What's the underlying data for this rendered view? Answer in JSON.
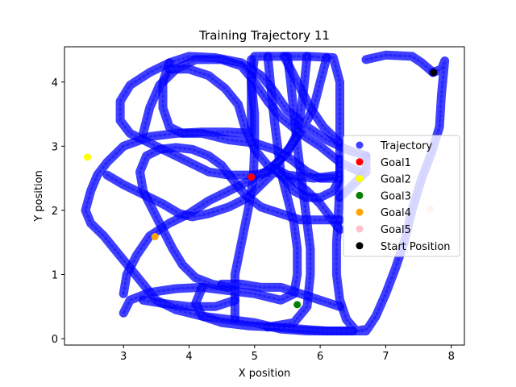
{
  "chart_data": {
    "type": "scatter",
    "title": "Training Trajectory 11",
    "xlabel": "X position",
    "ylabel": "Y position",
    "xlim": [
      2.1,
      8.2
    ],
    "ylim": [
      -0.1,
      4.55
    ],
    "xticks": [
      3,
      4,
      5,
      6,
      7,
      8
    ],
    "yticks": [
      0,
      1,
      2,
      3,
      4
    ],
    "grid": false,
    "legend_position": "center-right",
    "trajectory": {
      "name": "Trajectory",
      "color": "#0000ff",
      "paths": [
        [
          [
            7.72,
            4.15
          ],
          [
            7.85,
            4.2
          ],
          [
            7.9,
            4.33
          ],
          [
            7.85,
            3.8
          ],
          [
            7.82,
            3.3
          ],
          [
            7.7,
            2.9
          ],
          [
            7.55,
            2.5
          ],
          [
            7.4,
            2.0
          ],
          [
            7.28,
            1.5
          ],
          [
            7.15,
            1.1
          ],
          [
            7.0,
            0.7
          ],
          [
            6.85,
            0.35
          ],
          [
            6.72,
            0.15
          ],
          [
            6.55,
            0.12
          ],
          [
            6.4,
            0.3
          ],
          [
            6.3,
            0.6
          ],
          [
            6.25,
            1.0
          ],
          [
            6.25,
            1.5
          ],
          [
            6.28,
            2.0
          ],
          [
            6.3,
            2.5
          ],
          [
            6.3,
            3.0
          ],
          [
            6.3,
            3.5
          ],
          [
            6.3,
            4.0
          ],
          [
            6.2,
            4.38
          ],
          [
            5.8,
            4.4
          ],
          [
            5.4,
            4.4
          ],
          [
            5.0,
            4.4
          ],
          [
            4.95,
            4.0
          ],
          [
            4.95,
            3.6
          ],
          [
            4.95,
            3.2
          ],
          [
            4.6,
            3.22
          ],
          [
            4.2,
            3.22
          ],
          [
            3.8,
            3.2
          ],
          [
            3.4,
            3.15
          ],
          [
            3.0,
            3.0
          ],
          [
            2.75,
            2.75
          ],
          [
            2.6,
            2.55
          ],
          [
            2.5,
            2.3
          ],
          [
            2.42,
            2.0
          ],
          [
            2.5,
            1.8
          ],
          [
            2.7,
            1.6
          ],
          [
            2.9,
            1.35
          ],
          [
            3.1,
            1.1
          ],
          [
            3.3,
            0.85
          ],
          [
            3.5,
            0.6
          ],
          [
            3.8,
            0.45
          ],
          [
            4.2,
            0.35
          ],
          [
            4.6,
            0.3
          ],
          [
            5.0,
            0.25
          ],
          [
            5.4,
            0.15
          ],
          [
            5.8,
            0.12
          ],
          [
            6.2,
            0.12
          ],
          [
            6.7,
            0.12
          ]
        ],
        [
          [
            6.7,
            4.35
          ],
          [
            7.0,
            4.42
          ],
          [
            7.4,
            4.4
          ],
          [
            7.55,
            4.3
          ],
          [
            7.72,
            4.15
          ]
        ],
        [
          [
            4.95,
            4.35
          ],
          [
            4.95,
            4.0
          ],
          [
            5.0,
            3.5
          ],
          [
            5.0,
            3.0
          ],
          [
            4.98,
            2.5
          ],
          [
            4.9,
            2.0
          ],
          [
            4.8,
            1.5
          ],
          [
            4.7,
            1.0
          ],
          [
            4.7,
            0.6
          ],
          [
            4.7,
            0.3
          ]
        ],
        [
          [
            5.2,
            4.4
          ],
          [
            5.25,
            3.9
          ],
          [
            5.3,
            3.4
          ],
          [
            5.35,
            3.0
          ],
          [
            5.4,
            2.6
          ],
          [
            5.5,
            2.2
          ],
          [
            5.6,
            1.8
          ],
          [
            5.65,
            1.4
          ],
          [
            5.65,
            1.0
          ],
          [
            5.6,
            0.7
          ],
          [
            5.4,
            0.6
          ],
          [
            5.0,
            0.7
          ],
          [
            4.6,
            0.75
          ],
          [
            4.2,
            0.8
          ],
          [
            3.8,
            0.78
          ],
          [
            3.4,
            0.72
          ],
          [
            3.1,
            0.6
          ],
          [
            3.0,
            0.4
          ]
        ],
        [
          [
            5.5,
            4.4
          ],
          [
            5.55,
            4.0
          ],
          [
            5.6,
            3.5
          ],
          [
            5.65,
            3.0
          ],
          [
            5.7,
            2.6
          ],
          [
            5.75,
            2.2
          ],
          [
            5.8,
            1.8
          ],
          [
            5.85,
            1.4
          ],
          [
            5.85,
            1.0
          ],
          [
            5.8,
            0.5
          ],
          [
            5.6,
            0.25
          ],
          [
            5.2,
            0.18
          ]
        ],
        [
          [
            5.8,
            4.4
          ],
          [
            5.75,
            3.9
          ],
          [
            5.7,
            3.5
          ],
          [
            5.65,
            3.2
          ],
          [
            5.5,
            2.9
          ],
          [
            5.3,
            2.7
          ],
          [
            5.1,
            2.55
          ],
          [
            4.9,
            2.45
          ],
          [
            4.6,
            2.3
          ],
          [
            4.3,
            2.15
          ],
          [
            4.0,
            1.95
          ],
          [
            3.7,
            1.8
          ],
          [
            3.4,
            1.6
          ],
          [
            3.2,
            1.3
          ],
          [
            3.05,
            1.0
          ],
          [
            3.0,
            0.7
          ]
        ],
        [
          [
            6.1,
            4.38
          ],
          [
            6.0,
            4.0
          ],
          [
            5.9,
            3.6
          ],
          [
            5.75,
            3.3
          ],
          [
            5.55,
            3.0
          ],
          [
            5.4,
            2.8
          ],
          [
            5.2,
            2.6
          ],
          [
            5.0,
            2.55
          ],
          [
            4.6,
            2.55
          ],
          [
            4.3,
            2.6
          ],
          [
            4.0,
            2.75
          ],
          [
            3.7,
            2.9
          ],
          [
            3.4,
            3.05
          ],
          [
            3.1,
            3.2
          ],
          [
            2.95,
            3.4
          ],
          [
            2.95,
            3.7
          ],
          [
            3.1,
            3.95
          ],
          [
            3.4,
            4.15
          ],
          [
            3.7,
            4.3
          ],
          [
            4.0,
            4.4
          ],
          [
            4.4,
            4.38
          ],
          [
            4.8,
            4.3
          ],
          [
            5.1,
            4.1
          ],
          [
            5.3,
            3.85
          ],
          [
            5.5,
            3.55
          ],
          [
            5.8,
            3.3
          ],
          [
            6.1,
            3.1
          ],
          [
            6.4,
            2.95
          ],
          [
            6.7,
            2.85
          ]
        ],
        [
          [
            3.3,
            3.2
          ],
          [
            3.4,
            3.6
          ],
          [
            3.55,
            3.95
          ],
          [
            3.8,
            4.2
          ],
          [
            4.1,
            4.35
          ],
          [
            4.5,
            4.35
          ],
          [
            4.8,
            4.25
          ],
          [
            5.0,
            4.0
          ],
          [
            5.2,
            3.7
          ],
          [
            5.4,
            3.45
          ],
          [
            5.7,
            3.2
          ],
          [
            6.0,
            3.0
          ],
          [
            6.3,
            2.75
          ],
          [
            6.6,
            2.6
          ]
        ],
        [
          [
            3.7,
            4.3
          ],
          [
            3.6,
            4.0
          ],
          [
            3.6,
            3.6
          ],
          [
            3.7,
            3.3
          ],
          [
            3.9,
            3.2
          ],
          [
            4.2,
            3.2
          ],
          [
            4.6,
            3.1
          ],
          [
            5.0,
            3.05
          ],
          [
            5.3,
            2.95
          ],
          [
            5.55,
            2.8
          ],
          [
            5.8,
            2.6
          ],
          [
            6.0,
            2.5
          ],
          [
            6.3,
            2.5
          ]
        ],
        [
          [
            2.75,
            2.55
          ],
          [
            3.0,
            2.4
          ],
          [
            3.3,
            2.25
          ],
          [
            3.6,
            2.1
          ],
          [
            3.85,
            1.95
          ],
          [
            4.05,
            1.9
          ],
          [
            4.3,
            1.95
          ],
          [
            4.6,
            2.05
          ],
          [
            4.9,
            2.2
          ],
          [
            5.1,
            2.4
          ],
          [
            5.3,
            2.6
          ],
          [
            5.55,
            2.5
          ],
          [
            5.8,
            2.3
          ],
          [
            6.0,
            2.1
          ],
          [
            6.15,
            1.9
          ],
          [
            6.3,
            1.7
          ]
        ],
        [
          [
            6.3,
            1.85
          ],
          [
            6.0,
            1.85
          ],
          [
            5.7,
            1.85
          ],
          [
            5.4,
            1.95
          ],
          [
            5.1,
            2.05
          ],
          [
            4.85,
            2.25
          ],
          [
            4.65,
            2.5
          ],
          [
            4.5,
            2.7
          ],
          [
            4.3,
            2.85
          ],
          [
            4.05,
            2.95
          ],
          [
            3.8,
            2.98
          ],
          [
            3.55,
            2.95
          ],
          [
            3.35,
            2.85
          ],
          [
            3.25,
            2.6
          ],
          [
            3.3,
            2.3
          ],
          [
            3.45,
            2.0
          ],
          [
            3.6,
            1.7
          ],
          [
            3.75,
            1.4
          ],
          [
            3.9,
            1.15
          ],
          [
            4.1,
            0.95
          ],
          [
            4.35,
            0.85
          ],
          [
            4.6,
            0.8
          ]
        ],
        [
          [
            6.3,
            2.55
          ],
          [
            5.9,
            2.5
          ],
          [
            5.5,
            2.55
          ],
          [
            5.2,
            2.7
          ],
          [
            5.0,
            2.95
          ],
          [
            4.85,
            3.3
          ],
          [
            4.75,
            3.65
          ],
          [
            4.55,
            3.9
          ],
          [
            4.3,
            4.1
          ],
          [
            4.0,
            4.2
          ],
          [
            3.7,
            4.2
          ]
        ],
        [
          [
            6.3,
            3.05
          ],
          [
            6.05,
            3.3
          ],
          [
            5.85,
            3.6
          ],
          [
            5.7,
            3.9
          ],
          [
            5.55,
            4.2
          ],
          [
            5.45,
            4.4
          ]
        ],
        [
          [
            6.3,
            2.2
          ],
          [
            6.5,
            2.4
          ],
          [
            6.7,
            2.6
          ],
          [
            6.7,
            2.85
          ]
        ],
        [
          [
            4.7,
            0.6
          ],
          [
            4.4,
            0.5
          ],
          [
            4.0,
            0.5
          ],
          [
            3.6,
            0.55
          ],
          [
            3.3,
            0.6
          ]
        ],
        [
          [
            4.2,
            0.8
          ],
          [
            4.1,
            0.55
          ],
          [
            4.2,
            0.35
          ],
          [
            4.5,
            0.25
          ],
          [
            4.9,
            0.2
          ],
          [
            5.3,
            0.18
          ],
          [
            5.7,
            0.15
          ],
          [
            6.1,
            0.12
          ],
          [
            6.5,
            0.12
          ]
        ],
        [
          [
            6.3,
            0.5
          ],
          [
            6.0,
            0.6
          ],
          [
            5.7,
            0.7
          ],
          [
            5.4,
            0.8
          ],
          [
            5.1,
            0.8
          ],
          [
            4.8,
            0.85
          ],
          [
            4.5,
            0.85
          ]
        ],
        [
          [
            6.3,
            2.8
          ],
          [
            6.3,
            2.5
          ],
          [
            6.2,
            2.3
          ],
          [
            6.0,
            2.2
          ],
          [
            5.8,
            2.2
          ],
          [
            5.6,
            2.3
          ],
          [
            5.5,
            2.45
          ],
          [
            5.4,
            2.55
          ],
          [
            5.3,
            2.65
          ]
        ]
      ]
    },
    "series": [
      {
        "name": "Goal1",
        "color": "#ff0000",
        "x": 4.95,
        "y": 2.52
      },
      {
        "name": "Goal2",
        "color": "#ffff00",
        "x": 2.45,
        "y": 2.83
      },
      {
        "name": "Goal3",
        "color": "#008000",
        "x": 5.65,
        "y": 0.53
      },
      {
        "name": "Goal4",
        "color": "#ffa500",
        "x": 3.48,
        "y": 1.59
      },
      {
        "name": "Goal5",
        "color": "#ffc0cb",
        "x": 7.68,
        "y": 2.02
      },
      {
        "name": "Start Position",
        "color": "#000000",
        "x": 7.73,
        "y": 4.15
      }
    ]
  }
}
